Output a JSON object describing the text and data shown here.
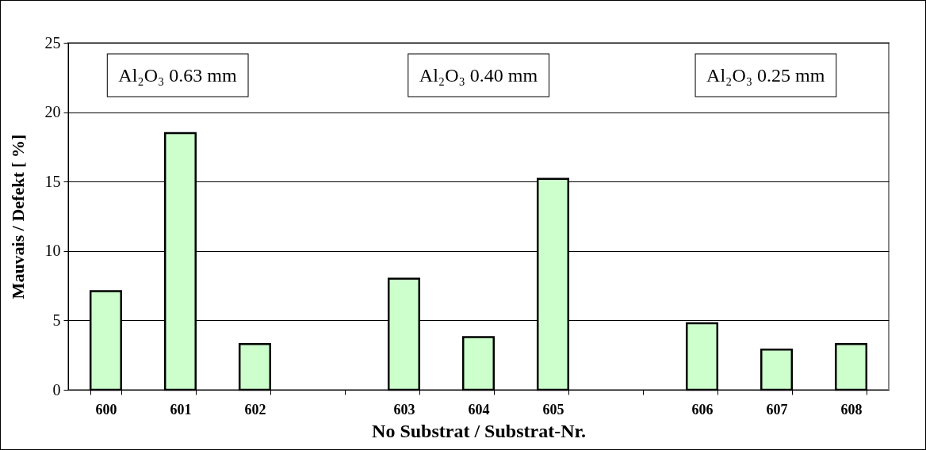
{
  "chart_data": {
    "type": "bar",
    "xlabel": "No Substrat / Substrat-Nr.",
    "ylabel": "Mauvais / Defekt  [ %]",
    "categories": [
      "600",
      "601",
      "602",
      null,
      "603",
      "604",
      "605",
      null,
      "606",
      "607",
      "608"
    ],
    "values": [
      7.1,
      18.5,
      3.3,
      null,
      8.0,
      3.8,
      15.2,
      null,
      4.8,
      2.9,
      3.3
    ],
    "color": "#ccffcc",
    "ylim": [
      0,
      25
    ],
    "yticks": [
      0,
      5,
      10,
      15,
      20,
      25
    ],
    "grid": "y",
    "annotations": [
      "Al₂O₃ 0.63 mm",
      "Al₂O₃ 0.40 mm",
      "Al₂O₃ 0.25 mm"
    ]
  }
}
